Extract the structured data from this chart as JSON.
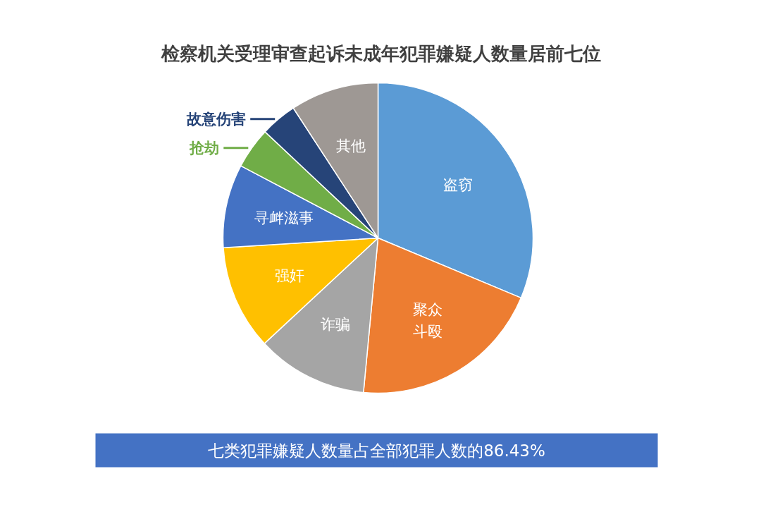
{
  "chart_data": {
    "type": "pie",
    "title": "检察机关受理审查起诉未成年犯罪嫌疑人数量居前七位",
    "categories": [
      "盗窃",
      "聚众斗殴",
      "诈骗",
      "强奸",
      "寻衅滋事",
      "抢劫",
      "故意伤害",
      "其他"
    ],
    "values": [
      31.3,
      20.2,
      11.6,
      10.9,
      8.7,
      4.3,
      3.8,
      9.2
    ],
    "colors": [
      "#5b9bd5",
      "#ed7d31",
      "#a5a5a5",
      "#ffc000",
      "#4472c4",
      "#70ad47",
      "#264478",
      "#9e9894"
    ],
    "annotations": [
      "七类犯罪嫌疑人数量占全部犯罪人数的86.43%"
    ]
  }
}
